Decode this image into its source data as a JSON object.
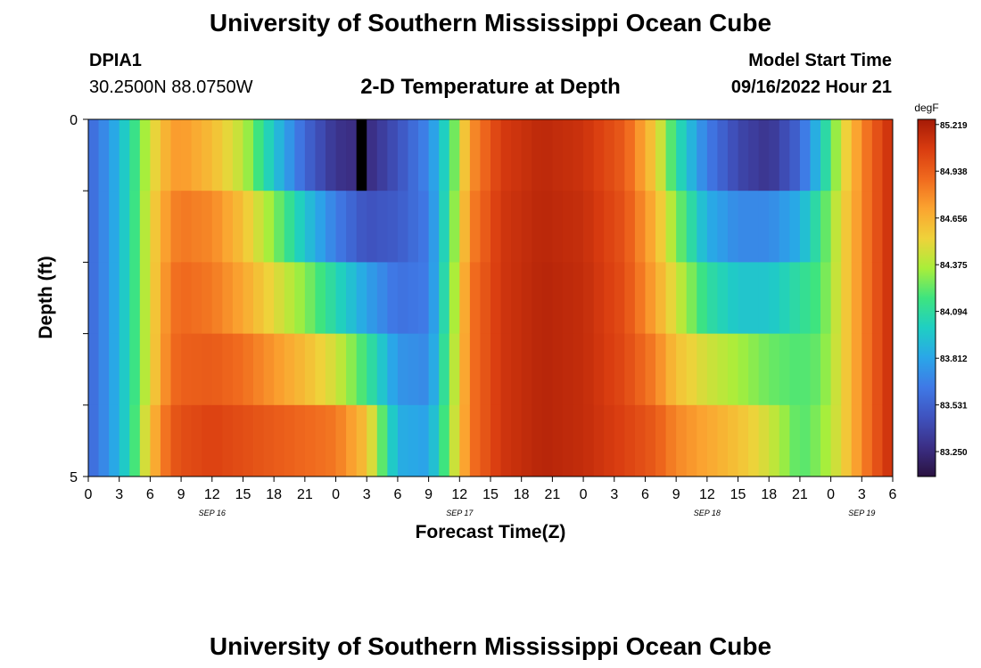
{
  "header": {
    "title": "University of Southern Mississippi Ocean Cube",
    "station_id": "DPIA1",
    "coordinates": "30.2500N  88.0750W",
    "plot_title": "2-D Temperature at Depth",
    "model_start_label": "Model Start Time",
    "model_start_value": "09/16/2022 Hour 21"
  },
  "footer": {
    "title": "University of Southern Mississippi Ocean Cube"
  },
  "colors": {
    "palette": [
      "#2a1240",
      "#3b2f86",
      "#3f53bf",
      "#3f79e6",
      "#2aa6e8",
      "#1fcfc3",
      "#3ee47f",
      "#a9ee3a",
      "#efd23a",
      "#fba430",
      "#f06a1e",
      "#d93c10",
      "#a51a06"
    ]
  },
  "chart_data": {
    "type": "heatmap",
    "xlabel": "Forecast Time(Z)",
    "ylabel": "Depth (ft)",
    "x_ticks": [
      "0",
      "3",
      "6",
      "9",
      "12",
      "15",
      "18",
      "21",
      "0",
      "3",
      "6",
      "9",
      "12",
      "15",
      "18",
      "21",
      "0",
      "3",
      "6",
      "9",
      "12",
      "15",
      "18",
      "21",
      "0",
      "3",
      "6"
    ],
    "x_range_hours": [
      0,
      78
    ],
    "date_labels": [
      {
        "label": "SEP 16",
        "hour": 12
      },
      {
        "label": "SEP 17",
        "hour": 36
      },
      {
        "label": "SEP 18",
        "hour": 60
      },
      {
        "label": "SEP 19",
        "hour": 75
      }
    ],
    "y_tick_labels": [
      "0",
      "5"
    ],
    "y_range": [
      0,
      5
    ],
    "depths": [
      0,
      1,
      2,
      3,
      4,
      5
    ],
    "colorbar": {
      "unit": "degF",
      "min": 83.1,
      "max": 85.25,
      "tick_labels": [
        "85.219",
        "84.938",
        "84.656",
        "84.375",
        "84.094",
        "83.812",
        "83.531",
        "83.250"
      ],
      "tick_values": [
        85.219,
        84.938,
        84.656,
        84.375,
        84.094,
        83.812,
        83.531,
        83.25
      ]
    },
    "missing": {
      "hour": 26,
      "depth_rows": [
        0
      ]
    },
    "keyframes": [
      {
        "hour": 0,
        "values": [
          83.55,
          83.55,
          83.55,
          83.55,
          83.55
        ]
      },
      {
        "hour": 2,
        "values": [
          83.75,
          83.75,
          83.75,
          83.75,
          83.75
        ]
      },
      {
        "hour": 4,
        "values": [
          84.05,
          84.05,
          84.05,
          84.05,
          84.05
        ]
      },
      {
        "hour": 6,
        "values": [
          84.45,
          84.5,
          84.5,
          84.5,
          84.6
        ]
      },
      {
        "hour": 8,
        "values": [
          84.72,
          84.8,
          84.85,
          84.88,
          84.95
        ]
      },
      {
        "hour": 9,
        "values": [
          84.75,
          84.85,
          84.9,
          84.93,
          85.0
        ]
      },
      {
        "hour": 12,
        "values": [
          84.62,
          84.8,
          84.85,
          84.95,
          85.05
        ]
      },
      {
        "hour": 15,
        "values": [
          84.4,
          84.6,
          84.7,
          84.88,
          85.0
        ]
      },
      {
        "hour": 18,
        "values": [
          83.95,
          84.3,
          84.5,
          84.75,
          84.95
        ]
      },
      {
        "hour": 21,
        "values": [
          83.55,
          83.95,
          84.3,
          84.62,
          84.9
        ]
      },
      {
        "hour": 24,
        "values": [
          83.3,
          83.65,
          84.05,
          84.45,
          84.85
        ]
      },
      {
        "hour": 27,
        "values": [
          83.25,
          83.45,
          83.8,
          84.15,
          84.6
        ]
      },
      {
        "hour": 30,
        "values": [
          83.45,
          83.5,
          83.6,
          83.75,
          83.85
        ]
      },
      {
        "hour": 33,
        "values": [
          83.7,
          83.65,
          83.65,
          83.7,
          83.8
        ]
      },
      {
        "hour": 35,
        "values": [
          84.1,
          84.15,
          84.2,
          84.25,
          84.3
        ]
      },
      {
        "hour": 37,
        "values": [
          84.75,
          84.8,
          84.85,
          84.85,
          84.85
        ]
      },
      {
        "hour": 40,
        "values": [
          85.08,
          85.1,
          85.1,
          85.1,
          85.1
        ]
      },
      {
        "hour": 44,
        "values": [
          85.17,
          85.18,
          85.19,
          85.19,
          85.19
        ]
      },
      {
        "hour": 48,
        "values": [
          85.12,
          85.14,
          85.15,
          85.15,
          85.15
        ]
      },
      {
        "hour": 52,
        "values": [
          84.95,
          84.98,
          85.0,
          85.02,
          85.05
        ]
      },
      {
        "hour": 55,
        "values": [
          84.55,
          84.65,
          84.7,
          84.82,
          84.95
        ]
      },
      {
        "hour": 57,
        "values": [
          84.1,
          84.3,
          84.45,
          84.6,
          84.8
        ]
      },
      {
        "hour": 60,
        "values": [
          83.65,
          83.85,
          84.1,
          84.45,
          84.7
        ]
      },
      {
        "hour": 63,
        "values": [
          83.4,
          83.7,
          83.95,
          84.35,
          84.6
        ]
      },
      {
        "hour": 66,
        "values": [
          83.3,
          83.7,
          83.95,
          84.25,
          84.45
        ]
      },
      {
        "hour": 69,
        "values": [
          83.55,
          83.85,
          84.1,
          84.2,
          84.2
        ]
      },
      {
        "hour": 71,
        "values": [
          83.95,
          84.15,
          84.2,
          84.25,
          84.3
        ]
      },
      {
        "hour": 73,
        "values": [
          84.45,
          84.5,
          84.5,
          84.5,
          84.5
        ]
      },
      {
        "hour": 75,
        "values": [
          84.8,
          84.8,
          84.8,
          84.8,
          84.8
        ]
      },
      {
        "hour": 77,
        "values": [
          85.05,
          85.05,
          85.05,
          85.05,
          85.05
        ]
      },
      {
        "hour": 78,
        "values": [
          85.15,
          85.15,
          85.15,
          85.15,
          85.15
        ]
      }
    ]
  }
}
